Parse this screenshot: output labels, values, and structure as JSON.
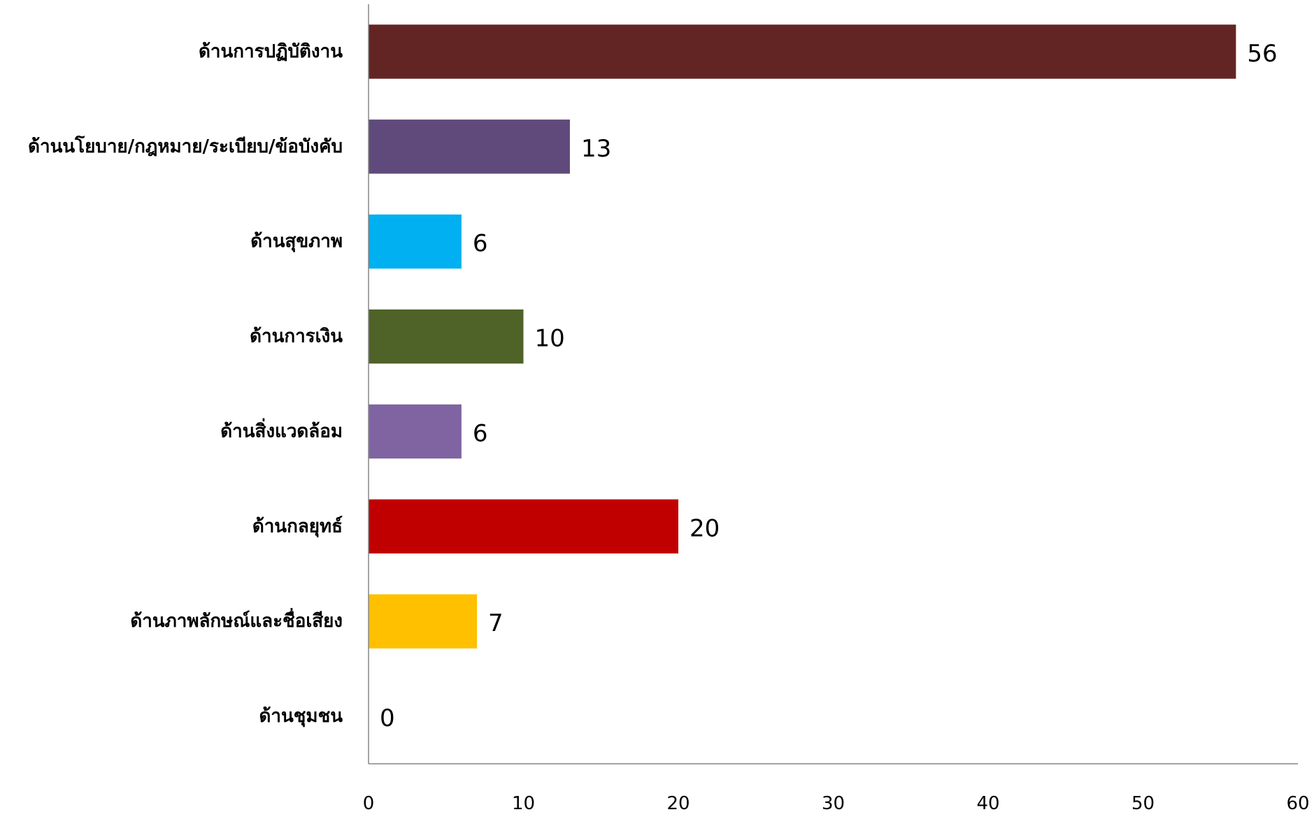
{
  "chart_data": {
    "type": "bar",
    "orientation": "horizontal",
    "title": "",
    "xlabel": "",
    "ylabel": "",
    "categories": [
      "ด้านการปฏิบัติงาน",
      "ด้านนโยบาย/กฎหมาย/ระเบียบ/ข้อบังคับ",
      "ด้านสุขภาพ",
      "ด้านการเงิน",
      "ด้านสิ่งแวดล้อม",
      "ด้านกลยุทธ์",
      "ด้านภาพลักษณ์และชื่อเสียง",
      "ด้านชุมชน"
    ],
    "values": [
      56,
      13,
      6,
      10,
      6,
      20,
      7,
      0
    ],
    "value_labels": [
      "56",
      "13",
      "6",
      "10",
      "6",
      "20",
      "7",
      "0"
    ],
    "colors": [
      "#632523",
      "#604a7b",
      "#00b0f0",
      "#4f6228",
      "#8064a2",
      "#c00000",
      "#ffc000",
      "#4f81bd"
    ],
    "xlim": [
      0,
      60
    ],
    "ticks": [
      0,
      10,
      20,
      30,
      40,
      50,
      60
    ],
    "tick_labels": [
      "0",
      "10",
      "20",
      "30",
      "40",
      "50",
      "60"
    ],
    "grid": false,
    "legend": "none",
    "data_labels": true
  }
}
